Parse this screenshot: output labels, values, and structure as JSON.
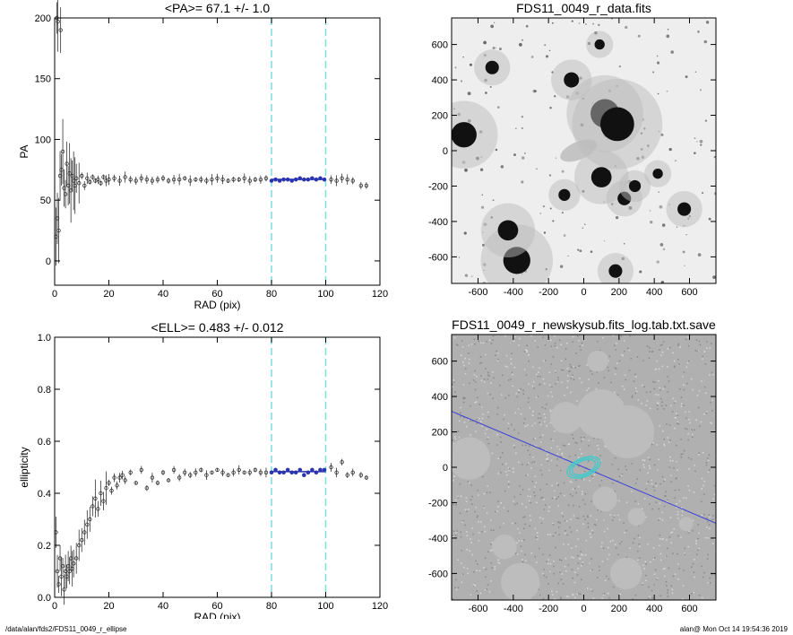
{
  "footer": {
    "left": "/data/alan/fds2/FDS11_0049_r_ellipse",
    "right": "alan@  Mon Oct 14 19:54:36 2019"
  },
  "colors": {
    "points": "#333333",
    "fit_line": "#2a35b0",
    "fit_points": "#2a35b0",
    "marker_lines": "#7fdede",
    "model_line": "#3a40d8",
    "ellipse": "#48c8c8"
  },
  "chart_data": [
    {
      "id": "pa",
      "type": "scatter",
      "title": "<PA>=  67.1 +/-   1.0",
      "xlabel": "RAD (pix)",
      "ylabel": "PA",
      "xlim": [
        0,
        120
      ],
      "ylim": [
        -20,
        200
      ],
      "xticks": [
        "0",
        "20",
        "40",
        "60",
        "80",
        "100",
        "120"
      ],
      "yticks": [
        "0",
        "50",
        "100",
        "150",
        "200"
      ],
      "vlines": [
        80,
        100
      ],
      "series": [
        {
          "x": [
            0.5,
            1,
            1.5,
            2,
            2.5,
            3,
            3.5,
            4,
            4.5,
            5,
            5.5,
            6,
            6.5,
            7,
            7.5,
            8,
            9,
            10,
            11,
            12,
            13,
            14,
            15,
            16,
            17,
            18,
            19,
            20,
            22,
            24,
            26,
            28,
            30,
            32,
            34,
            36,
            38,
            40,
            42,
            44,
            46,
            48,
            50,
            52,
            54,
            56,
            58,
            60,
            62,
            64,
            66,
            68,
            70,
            72,
            74,
            76,
            78
          ],
          "y": [
            20,
            35,
            25,
            70,
            75,
            90,
            60,
            55,
            80,
            62,
            72,
            58,
            70,
            66,
            62,
            68,
            64,
            70,
            62,
            68,
            65,
            69,
            66,
            67,
            64,
            69,
            66,
            67,
            68,
            66,
            69,
            67,
            66,
            68,
            67,
            66,
            67,
            68,
            66,
            67,
            67,
            68,
            66,
            67,
            67,
            66,
            67,
            68,
            67,
            66,
            67,
            67,
            68,
            66,
            67,
            67,
            68
          ]
        },
        {
          "x": [
            0.8,
            1.2,
            2.2
          ],
          "y": [
            200,
            197,
            190
          ]
        },
        {
          "x": [
            102,
            104,
            106,
            108,
            110,
            113,
            115
          ],
          "y": [
            67,
            66,
            68,
            67,
            66,
            62,
            62
          ]
        }
      ],
      "fit_points": {
        "x": [
          80,
          81.5,
          83,
          84.5,
          86,
          87.5,
          89,
          90.5,
          92,
          93.5,
          95,
          96.5,
          98,
          99.5
        ],
        "y": [
          66,
          67,
          66,
          67,
          67,
          66,
          67,
          68,
          67,
          67,
          68,
          67,
          68,
          67
        ]
      },
      "fit_line": [
        [
          80,
          67.1
        ],
        [
          100,
          67.1
        ]
      ]
    },
    {
      "id": "ell",
      "type": "scatter",
      "title": "<ELL>= 0.483 +/-  0.012",
      "xlabel": "RAD (pix)",
      "ylabel": "ellipticity",
      "xlim": [
        0,
        120
      ],
      "ylim": [
        0,
        1.0
      ],
      "xticks": [
        "0",
        "20",
        "40",
        "60",
        "80",
        "100",
        "120"
      ],
      "yticks": [
        "0.0",
        "0.2",
        "0.4",
        "0.6",
        "0.8",
        "1.0"
      ],
      "vlines": [
        80,
        100
      ],
      "series": [
        {
          "x": [
            0.5,
            1,
            1.5,
            2,
            2.5,
            3,
            3.5,
            4,
            4.5,
            5,
            5.5,
            6,
            6.5,
            7,
            8,
            9,
            10,
            11,
            12,
            13,
            14,
            15,
            16,
            17,
            18,
            19,
            20,
            21,
            22,
            23,
            24,
            25,
            26,
            28,
            30,
            32,
            34,
            36,
            38,
            40,
            42,
            44,
            46,
            48,
            50,
            52,
            54,
            56,
            58,
            60,
            62,
            64,
            66,
            68,
            70,
            72,
            74,
            76,
            78
          ],
          "y": [
            0.25,
            0.1,
            0.05,
            0.15,
            0.08,
            0.12,
            0.03,
            0.1,
            0.08,
            0.12,
            0.1,
            0.15,
            0.11,
            0.13,
            0.15,
            0.2,
            0.22,
            0.25,
            0.28,
            0.3,
            0.35,
            0.38,
            0.34,
            0.4,
            0.37,
            0.42,
            0.44,
            0.41,
            0.46,
            0.43,
            0.46,
            0.47,
            0.45,
            0.48,
            0.44,
            0.49,
            0.42,
            0.46,
            0.44,
            0.48,
            0.45,
            0.49,
            0.46,
            0.48,
            0.47,
            0.48,
            0.49,
            0.47,
            0.48,
            0.49,
            0.48,
            0.47,
            0.48,
            0.49,
            0.48,
            0.48,
            0.49,
            0.48,
            0.48
          ]
        },
        {
          "x": [
            102,
            104,
            106,
            108,
            110,
            113,
            115
          ],
          "y": [
            0.5,
            0.48,
            0.52,
            0.47,
            0.48,
            0.47,
            0.46
          ]
        }
      ],
      "fit_points": {
        "x": [
          80,
          81.5,
          83,
          84.5,
          86,
          87.5,
          89,
          90.5,
          92,
          93.5,
          95,
          96.5,
          98,
          99.5
        ],
        "y": [
          0.48,
          0.49,
          0.48,
          0.48,
          0.49,
          0.48,
          0.48,
          0.49,
          0.47,
          0.48,
          0.49,
          0.48,
          0.49,
          0.49
        ]
      },
      "fit_line": [
        [
          80,
          0.483
        ],
        [
          100,
          0.483
        ]
      ]
    },
    {
      "id": "img1",
      "type": "heatmap",
      "title": "FDS11_0049_r_data.fits",
      "xlim": [
        -750,
        750
      ],
      "ylim": [
        -750,
        750
      ],
      "xticks": [
        "-600",
        "-400",
        "-200",
        "0",
        "200",
        "400",
        "600"
      ],
      "yticks": [
        "-600",
        "-400",
        "-200",
        "0",
        "200",
        "400",
        "600"
      ],
      "sources": [
        {
          "x": 120,
          "y": 210,
          "size": 34
        },
        {
          "x": 190,
          "y": 150,
          "size": 40
        },
        {
          "x": -680,
          "y": 90,
          "size": 30
        },
        {
          "x": -380,
          "y": -620,
          "size": 32
        },
        {
          "x": -430,
          "y": -450,
          "size": 24
        },
        {
          "x": 100,
          "y": -150,
          "size": 24
        },
        {
          "x": -70,
          "y": 400,
          "size": 18
        },
        {
          "x": -520,
          "y": 470,
          "size": 16
        },
        {
          "x": 230,
          "y": -270,
          "size": 16
        },
        {
          "x": 290,
          "y": -200,
          "size": 14
        },
        {
          "x": 420,
          "y": -130,
          "size": 12
        },
        {
          "x": 570,
          "y": -330,
          "size": 16
        },
        {
          "x": -110,
          "y": -250,
          "size": 14
        },
        {
          "x": 180,
          "y": -680,
          "size": 16
        },
        {
          "x": 90,
          "y": 600,
          "size": 12
        }
      ],
      "galaxy": {
        "x": -30,
        "y": 0,
        "rx": 110,
        "ry": 50,
        "angle": -23
      }
    },
    {
      "id": "img2",
      "type": "heatmap",
      "title": "FDS11_0049_r_newskysub.fits_log.tab.txt.save",
      "xlim": [
        -750,
        750
      ],
      "ylim": [
        -750,
        750
      ],
      "xticks": [
        "-600",
        "-400",
        "-200",
        "0",
        "200",
        "400",
        "600"
      ],
      "yticks": [
        "-600",
        "-400",
        "-200",
        "0",
        "200",
        "400",
        "600"
      ],
      "masks": [
        {
          "x": 100,
          "y": 300,
          "r": 140
        },
        {
          "x": -100,
          "y": 280,
          "r": 90
        },
        {
          "x": 250,
          "y": 200,
          "r": 150
        },
        {
          "x": -650,
          "y": 50,
          "r": 120
        },
        {
          "x": 80,
          "y": 600,
          "r": 60
        },
        {
          "x": -360,
          "y": -650,
          "r": 110
        },
        {
          "x": -450,
          "y": -450,
          "r": 70
        },
        {
          "x": 240,
          "y": -600,
          "r": 90
        },
        {
          "x": 120,
          "y": -180,
          "r": 70
        },
        {
          "x": 300,
          "y": -280,
          "r": 50
        },
        {
          "x": 580,
          "y": -320,
          "r": 40
        }
      ],
      "ellipse": {
        "x": 0,
        "y": 0,
        "a": 100,
        "b": 52,
        "angle": -23
      },
      "pa_line": [
        [
          -750,
          316
        ],
        [
          750,
          -316
        ]
      ]
    }
  ]
}
